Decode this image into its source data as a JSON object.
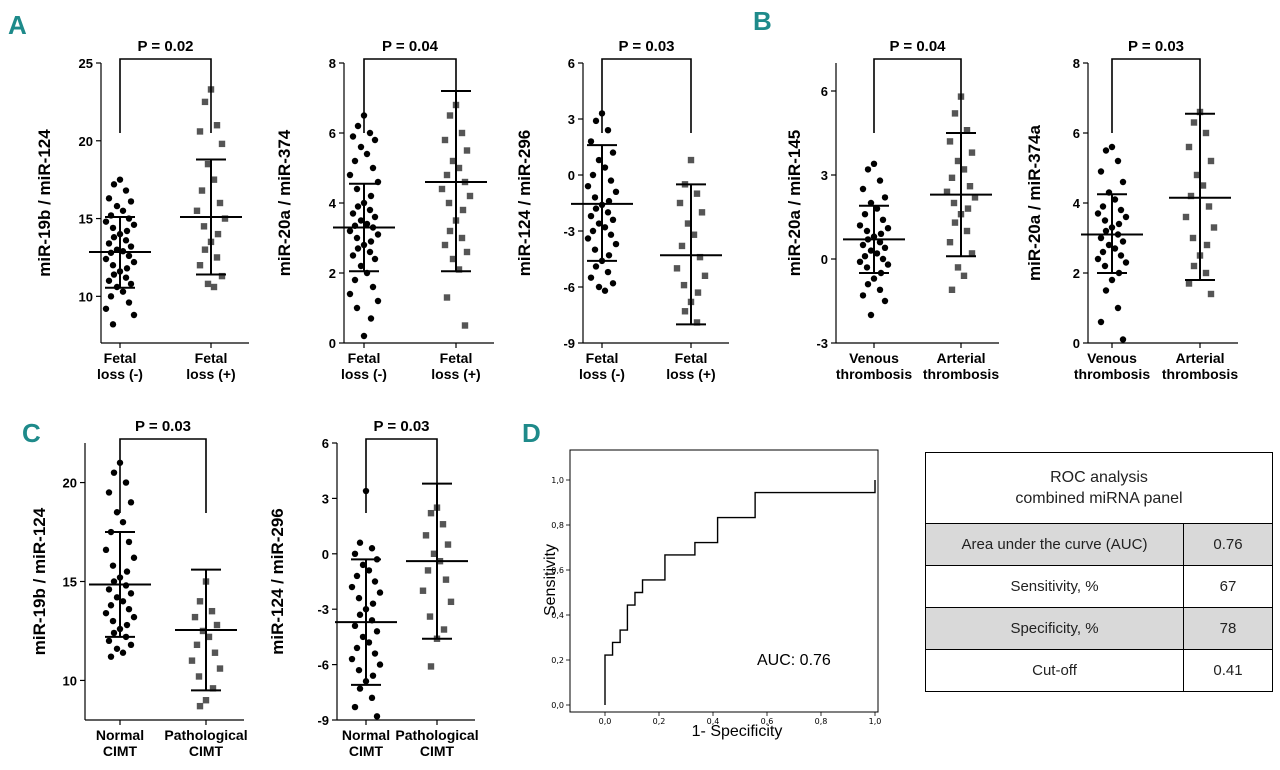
{
  "panel_labels": {
    "A": "A",
    "B": "B",
    "C": "C",
    "D": "D"
  },
  "colors": {
    "accent": "#1e8a8a",
    "ink": "#000000",
    "shade": "#d9d9d9"
  },
  "chart_data": [
    {
      "type": "scatter",
      "panel": "A",
      "ylabel": "miR-19b / miR-124",
      "ylim": [
        7,
        25
      ],
      "yticks": [
        "10",
        "15",
        "20",
        "25"
      ],
      "ytickvals": [
        10,
        15,
        20,
        25
      ],
      "pvalue": "P = 0.02",
      "groups": [
        {
          "label1": "Fetal",
          "label2": "loss (-)",
          "marker": "circle",
          "mean": 12.85,
          "sd_low": 10.55,
          "sd_high": 15.1,
          "values": [
            17.5,
            17.2,
            16.8,
            16.3,
            16.1,
            15.8,
            15.5,
            15.2,
            15.0,
            14.8,
            14.6,
            14.4,
            14.2,
            14.0,
            13.8,
            13.6,
            13.4,
            13.2,
            13.0,
            12.9,
            12.8,
            12.6,
            12.4,
            12.2,
            12.0,
            11.8,
            11.6,
            11.4,
            11.2,
            11.0,
            10.8,
            10.6,
            10.3,
            10.0,
            9.6,
            9.2,
            8.8,
            8.2
          ]
        },
        {
          "label1": "Fetal",
          "label2": "loss (+)",
          "marker": "square",
          "mean": 15.1,
          "sd_low": 11.4,
          "sd_high": 18.8,
          "values": [
            23.3,
            22.5,
            21.0,
            20.6,
            19.8,
            18.5,
            17.5,
            16.8,
            16.0,
            15.5,
            15.0,
            14.5,
            14.0,
            13.5,
            13.0,
            12.5,
            12.0,
            11.3,
            10.8,
            10.6
          ]
        }
      ]
    },
    {
      "type": "scatter",
      "panel": "A",
      "ylabel": "miR-20a / miR-374",
      "ylim": [
        0,
        8
      ],
      "yticks": [
        "0",
        "2",
        "4",
        "6",
        "8"
      ],
      "ytickvals": [
        0,
        2,
        4,
        6,
        8
      ],
      "pvalue": "P = 0.04",
      "groups": [
        {
          "label1": "Fetal",
          "label2": "loss (-)",
          "marker": "circle",
          "mean": 3.3,
          "sd_low": 2.05,
          "sd_high": 4.55,
          "values": [
            6.5,
            6.2,
            6.0,
            5.9,
            5.8,
            5.6,
            5.4,
            5.2,
            5.0,
            4.8,
            4.6,
            4.4,
            4.2,
            4.0,
            3.9,
            3.8,
            3.7,
            3.6,
            3.5,
            3.4,
            3.35,
            3.3,
            3.2,
            3.1,
            3.0,
            2.9,
            2.8,
            2.7,
            2.6,
            2.5,
            2.4,
            2.2,
            2.0,
            1.8,
            1.6,
            1.4,
            1.2,
            1.0,
            0.7,
            0.2
          ]
        },
        {
          "label1": "Fetal",
          "label2": "loss (+)",
          "marker": "square",
          "mean": 4.6,
          "sd_low": 2.05,
          "sd_high": 7.2,
          "values": [
            6.8,
            6.5,
            6.0,
            5.8,
            5.5,
            5.2,
            5.0,
            4.8,
            4.6,
            4.4,
            4.2,
            4.0,
            3.8,
            3.5,
            3.2,
            3.0,
            2.8,
            2.6,
            2.4,
            2.1,
            1.3,
            0.5
          ]
        }
      ]
    },
    {
      "type": "scatter",
      "panel": "A",
      "ylabel": "miR-124 / miR-296",
      "ylim": [
        -9,
        6
      ],
      "yticks": [
        "-9",
        "-6",
        "-3",
        "0",
        "3",
        "6"
      ],
      "ytickvals": [
        -9,
        -6,
        -3,
        0,
        3,
        6
      ],
      "pvalue": "P = 0.03",
      "groups": [
        {
          "label1": "Fetal",
          "label2": "loss (-)",
          "marker": "circle",
          "mean": -1.55,
          "sd_low": -4.6,
          "sd_high": 1.6,
          "values": [
            3.3,
            2.9,
            2.4,
            1.8,
            1.2,
            0.8,
            0.4,
            0.0,
            -0.3,
            -0.6,
            -0.9,
            -1.2,
            -1.4,
            -1.6,
            -1.8,
            -2.0,
            -2.2,
            -2.4,
            -2.6,
            -2.8,
            -3.0,
            -3.2,
            -3.4,
            -3.7,
            -4.0,
            -4.3,
            -4.6,
            -4.9,
            -5.2,
            -5.5,
            -5.8,
            -6.0,
            -6.2
          ]
        },
        {
          "label1": "Fetal",
          "label2": "loss (+)",
          "marker": "square",
          "mean": -4.3,
          "sd_low": -8.0,
          "sd_high": -0.5,
          "values": [
            0.8,
            -0.5,
            -1.0,
            -1.5,
            -2.0,
            -2.6,
            -3.2,
            -3.8,
            -4.4,
            -5.0,
            -5.4,
            -5.9,
            -6.3,
            -6.8,
            -7.3,
            -7.9
          ]
        }
      ]
    },
    {
      "type": "scatter",
      "panel": "B",
      "ylabel": "miR-20a / miR-145",
      "ylim": [
        -3,
        7
      ],
      "yticks": [
        "-3",
        "0",
        "3",
        "6"
      ],
      "ytickvals": [
        -3,
        0,
        3,
        6
      ],
      "pvalue": "P = 0.04",
      "groups": [
        {
          "label1": "Venous",
          "label2": "thrombosis",
          "marker": "circle",
          "mean": 0.7,
          "sd_low": -0.5,
          "sd_high": 1.9,
          "values": [
            3.4,
            3.2,
            2.8,
            2.5,
            2.2,
            2.0,
            1.8,
            1.6,
            1.4,
            1.2,
            1.1,
            1.0,
            0.9,
            0.8,
            0.7,
            0.6,
            0.5,
            0.4,
            0.3,
            0.2,
            0.1,
            0.0,
            -0.1,
            -0.2,
            -0.3,
            -0.5,
            -0.7,
            -0.9,
            -1.1,
            -1.3,
            -1.5,
            -2.0
          ]
        },
        {
          "label1": "Arterial",
          "label2": "thrombosis",
          "marker": "square",
          "mean": 2.3,
          "sd_low": 0.1,
          "sd_high": 4.5,
          "values": [
            5.8,
            5.2,
            4.6,
            4.2,
            3.8,
            3.5,
            3.2,
            2.9,
            2.6,
            2.4,
            2.2,
            2.0,
            1.8,
            1.6,
            1.3,
            1.0,
            0.6,
            0.2,
            -0.3,
            -0.6,
            -1.1
          ]
        }
      ]
    },
    {
      "type": "scatter",
      "panel": "B",
      "ylabel": "miR-20a / miR-374a",
      "ylim": [
        0,
        8
      ],
      "yticks": [
        "0",
        "2",
        "4",
        "6",
        "8"
      ],
      "ytickvals": [
        0,
        2,
        4,
        6,
        8
      ],
      "pvalue": "P = 0.03",
      "groups": [
        {
          "label1": "Venous",
          "label2": "thrombosis",
          "marker": "circle",
          "mean": 3.1,
          "sd_low": 2.0,
          "sd_high": 4.25,
          "values": [
            5.6,
            5.5,
            5.2,
            4.9,
            4.6,
            4.3,
            4.1,
            3.9,
            3.8,
            3.7,
            3.6,
            3.5,
            3.4,
            3.3,
            3.2,
            3.1,
            3.0,
            2.9,
            2.8,
            2.7,
            2.6,
            2.5,
            2.4,
            2.3,
            2.2,
            2.0,
            1.8,
            1.5,
            1.0,
            0.6,
            0.1
          ]
        },
        {
          "label1": "Arterial",
          "label2": "thrombosis",
          "marker": "square",
          "mean": 4.15,
          "sd_low": 1.8,
          "sd_high": 6.55,
          "values": [
            6.6,
            6.3,
            6.0,
            5.6,
            5.2,
            4.8,
            4.5,
            4.2,
            3.9,
            3.6,
            3.3,
            3.0,
            2.8,
            2.5,
            2.2,
            2.0,
            1.7,
            1.4
          ]
        }
      ]
    },
    {
      "type": "scatter",
      "panel": "C",
      "ylabel": "miR-19b / miR-124",
      "ylim": [
        8,
        22
      ],
      "yticks": [
        "10",
        "15",
        "20"
      ],
      "ytickvals": [
        10,
        15,
        20
      ],
      "pvalue": "P = 0.03",
      "groups": [
        {
          "label1": "Normal",
          "label2": "CIMT",
          "marker": "circle",
          "mean": 14.85,
          "sd_low": 12.2,
          "sd_high": 17.5,
          "values": [
            21.0,
            20.5,
            20.0,
            19.5,
            19.0,
            18.5,
            18.0,
            17.5,
            17.0,
            16.6,
            16.2,
            15.8,
            15.5,
            15.2,
            15.0,
            14.8,
            14.6,
            14.4,
            14.2,
            14.0,
            13.8,
            13.6,
            13.4,
            13.2,
            13.0,
            12.8,
            12.6,
            12.4,
            12.2,
            12.0,
            11.8,
            11.6,
            11.4,
            11.2
          ]
        },
        {
          "label1": "Pathological",
          "label2": "CIMT",
          "marker": "square",
          "mean": 12.55,
          "sd_low": 9.5,
          "sd_high": 15.6,
          "values": [
            15.0,
            14.0,
            13.5,
            13.2,
            12.8,
            12.5,
            12.2,
            11.8,
            11.4,
            11.0,
            10.6,
            10.2,
            9.6,
            9.0,
            8.7
          ]
        }
      ]
    },
    {
      "type": "scatter",
      "panel": "C",
      "ylabel": "miR-124 / miR-296",
      "ylim": [
        -9,
        6
      ],
      "yticks": [
        "-9",
        "-6",
        "-3",
        "0",
        "3",
        "6"
      ],
      "ytickvals": [
        -9,
        -6,
        -3,
        0,
        3,
        6
      ],
      "pvalue": "P = 0.03",
      "groups": [
        {
          "label1": "Normal",
          "label2": "CIMT",
          "marker": "circle",
          "mean": -3.7,
          "sd_low": -7.1,
          "sd_high": -0.3,
          "values": [
            3.4,
            0.6,
            0.3,
            0.0,
            -0.3,
            -0.6,
            -0.9,
            -1.2,
            -1.5,
            -1.8,
            -2.1,
            -2.4,
            -2.7,
            -3.0,
            -3.3,
            -3.6,
            -3.9,
            -4.2,
            -4.5,
            -4.8,
            -5.1,
            -5.4,
            -5.7,
            -6.0,
            -6.3,
            -6.6,
            -6.9,
            -7.3,
            -7.8,
            -8.3,
            -8.8
          ]
        },
        {
          "label1": "Pathological",
          "label2": "CIMT",
          "marker": "square",
          "mean": -0.4,
          "sd_low": -4.6,
          "sd_high": 3.8,
          "values": [
            2.5,
            2.2,
            1.6,
            1.0,
            0.5,
            0.0,
            -0.4,
            -0.9,
            -1.4,
            -2.0,
            -2.6,
            -3.4,
            -4.1,
            -4.6,
            -6.1
          ]
        }
      ]
    },
    {
      "type": "line",
      "panel": "D",
      "xlabel": "1- Specificity",
      "ylabel": "Sensitivity",
      "xlim": [
        0,
        1
      ],
      "ylim": [
        0,
        1
      ],
      "ticks": [
        "0,0",
        "0,2",
        "0,4",
        "0,6",
        "0,8",
        "1,0"
      ],
      "tickvals": [
        0,
        0.2,
        0.4,
        0.6,
        0.8,
        1.0
      ],
      "annotation": "AUC:  0.76",
      "x": [
        0,
        0,
        0.028,
        0.028,
        0.056,
        0.056,
        0.083,
        0.083,
        0.111,
        0.111,
        0.139,
        0.139,
        0.167,
        0.167,
        0.222,
        0.222,
        0.278,
        0.278,
        0.333,
        0.333,
        0.417,
        0.417,
        0.556,
        0.556,
        1.0,
        1.0
      ],
      "y": [
        0,
        0.222,
        0.222,
        0.278,
        0.278,
        0.333,
        0.333,
        0.444,
        0.444,
        0.5,
        0.5,
        0.556,
        0.556,
        0.556,
        0.556,
        0.667,
        0.667,
        0.667,
        0.667,
        0.722,
        0.722,
        0.833,
        0.833,
        0.944,
        0.944,
        1.0
      ]
    }
  ],
  "roc_table": {
    "title1": "ROC analysis",
    "title2": "combined miRNA panel",
    "rows": [
      {
        "label": "Area under the curve (AUC)",
        "value": "0.76"
      },
      {
        "label": "Sensitivity, %",
        "value": "67"
      },
      {
        "label": "Specificity, %",
        "value": "78"
      },
      {
        "label": "Cut-off",
        "value": "0.41"
      }
    ]
  }
}
